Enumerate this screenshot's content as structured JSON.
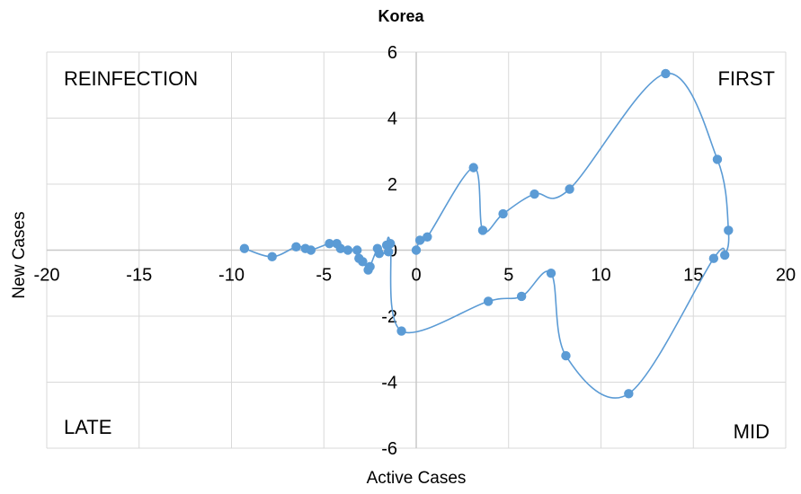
{
  "chart_data": {
    "type": "scatter",
    "title": "Korea",
    "xlabel": "Active Cases",
    "ylabel": "New Cases",
    "xlim": [
      -20,
      20
    ],
    "ylim": [
      -6,
      6
    ],
    "x_ticks": [
      -20,
      -15,
      -10,
      -5,
      0,
      5,
      10,
      15,
      20
    ],
    "y_ticks": [
      -6,
      -4,
      -2,
      0,
      2,
      4,
      6
    ],
    "grid": true,
    "smoothed_line": true,
    "color": "#5b9bd5",
    "quadrant_labels": {
      "top_left": "REINFECTION",
      "top_right": "FIRST",
      "bottom_left": "LATE",
      "bottom_right": "MID"
    },
    "series": [
      {
        "x": [
          0.0,
          0.2,
          0.6,
          3.1,
          3.6,
          4.7,
          6.4,
          8.3,
          13.5,
          16.3,
          16.9,
          16.7,
          16.1,
          11.5,
          8.1,
          7.3,
          5.7,
          3.9,
          -0.8,
          -1.4,
          -1.6,
          -1.5,
          -2.0,
          -2.1,
          -2.5,
          -2.6,
          -2.9,
          -3.1,
          -3.2,
          -3.7,
          -4.1,
          -4.3,
          -4.7,
          -5.7,
          -6.0,
          -6.5,
          -7.8,
          -9.3
        ],
        "y": [
          0.0,
          0.3,
          0.4,
          2.5,
          0.6,
          1.1,
          1.7,
          1.85,
          5.35,
          2.75,
          0.6,
          -0.15,
          -0.25,
          -4.35,
          -3.2,
          -0.7,
          -1.4,
          -1.55,
          -2.45,
          0.2,
          0.15,
          -0.05,
          -0.1,
          0.05,
          -0.5,
          -0.6,
          -0.35,
          -0.25,
          0.0,
          0.0,
          0.05,
          0.2,
          0.2,
          0.0,
          0.05,
          0.1,
          -0.2,
          0.05
        ]
      }
    ]
  }
}
